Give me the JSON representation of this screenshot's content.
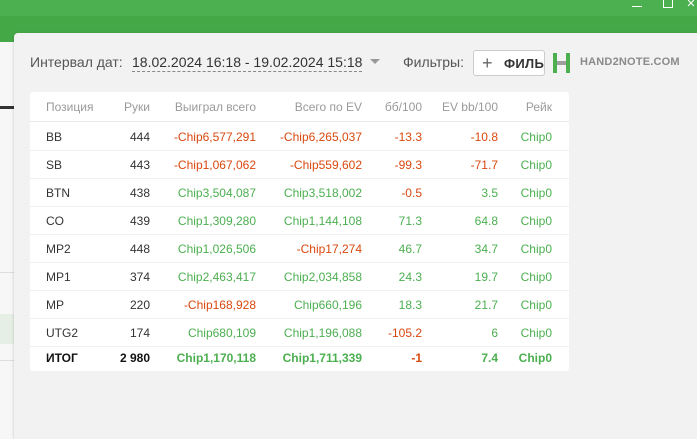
{
  "colors": {
    "accent": "#4caf50",
    "negative": "#d9480f",
    "header_text": "#9a9a9a"
  },
  "toolbar": {
    "interval_label": "Интервал дат:",
    "interval_value": "18.02.2024 16:18 - 19.02.2024 15:18",
    "filters_label": "Фильтры:",
    "filters_button": "ФИЛЬ",
    "logo_text": "HAND2NOTE.COM"
  },
  "table": {
    "headers": [
      "Позиция",
      "Руки",
      "Выиграл всего",
      "Всего по EV",
      "бб/100",
      "EV bb/100",
      "Рейк"
    ],
    "rows": [
      {
        "cells": [
          "BB",
          "444",
          "-Chip6,577,291",
          "-Chip6,265,037",
          "-13.3",
          "-10.8",
          "Chip0"
        ],
        "signs": [
          "",
          "",
          "neg",
          "neg",
          "neg",
          "neg",
          "pos"
        ]
      },
      {
        "cells": [
          "SB",
          "443",
          "-Chip1,067,062",
          "-Chip559,602",
          "-99.3",
          "-71.7",
          "Chip0"
        ],
        "signs": [
          "",
          "",
          "neg",
          "neg",
          "neg",
          "neg",
          "pos"
        ]
      },
      {
        "cells": [
          "BTN",
          "438",
          "Chip3,504,087",
          "Chip3,518,002",
          "-0.5",
          "3.5",
          "Chip0"
        ],
        "signs": [
          "",
          "",
          "pos",
          "pos",
          "neg",
          "pos",
          "pos"
        ]
      },
      {
        "cells": [
          "CO",
          "439",
          "Chip1,309,280",
          "Chip1,144,108",
          "71.3",
          "64.8",
          "Chip0"
        ],
        "signs": [
          "",
          "",
          "pos",
          "pos",
          "pos",
          "pos",
          "pos"
        ]
      },
      {
        "cells": [
          "MP2",
          "448",
          "Chip1,026,506",
          "-Chip17,274",
          "46.7",
          "34.7",
          "Chip0"
        ],
        "signs": [
          "",
          "",
          "pos",
          "neg",
          "pos",
          "pos",
          "pos"
        ]
      },
      {
        "cells": [
          "MP1",
          "374",
          "Chip2,463,417",
          "Chip2,034,858",
          "24.3",
          "19.7",
          "Chip0"
        ],
        "signs": [
          "",
          "",
          "pos",
          "pos",
          "pos",
          "pos",
          "pos"
        ]
      },
      {
        "cells": [
          "MP",
          "220",
          "-Chip168,928",
          "Chip660,196",
          "18.3",
          "21.7",
          "Chip0"
        ],
        "signs": [
          "",
          "",
          "neg",
          "pos",
          "pos",
          "pos",
          "pos"
        ]
      },
      {
        "cells": [
          "UTG2",
          "174",
          "Chip680,109",
          "Chip1,196,088",
          "-105.2",
          "6",
          "Chip0"
        ],
        "signs": [
          "",
          "",
          "pos",
          "pos",
          "neg",
          "pos",
          "pos"
        ]
      }
    ],
    "total": {
      "cells": [
        "ИТОГ",
        "2 980",
        "Chip1,170,118",
        "Chip1,711,339",
        "-1",
        "7.4",
        "Chip0"
      ],
      "signs": [
        "",
        "",
        "pos",
        "pos",
        "neg",
        "pos",
        "pos"
      ]
    }
  }
}
